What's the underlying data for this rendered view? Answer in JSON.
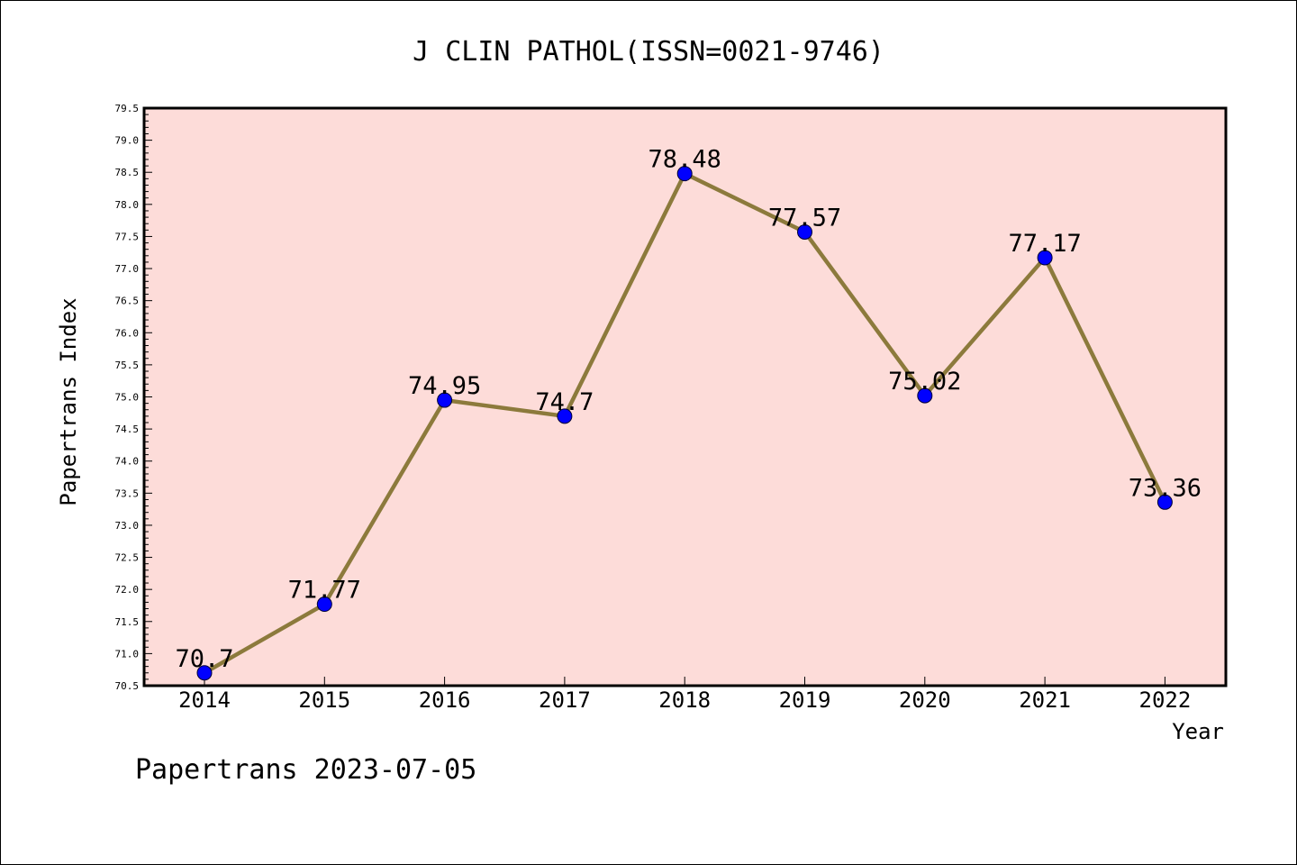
{
  "chart_data": {
    "type": "line",
    "title": "J CLIN PATHOL(ISSN=0021-9746)",
    "xlabel": "Year",
    "ylabel": "Papertrans Index",
    "categories": [
      "2014",
      "2015",
      "2016",
      "2017",
      "2018",
      "2019",
      "2020",
      "2021",
      "2022"
    ],
    "series": [
      {
        "values": [
          70.7,
          71.77,
          74.95,
          74.7,
          78.48,
          77.57,
          75.02,
          77.17,
          73.36
        ],
        "labels": [
          "70.7",
          "71.77",
          "74.95",
          "74.7",
          "78.48",
          "77.57",
          "75.02",
          "77.17",
          "73.36"
        ]
      }
    ],
    "ylim": [
      70.5,
      79.5
    ],
    "yticks": [
      "70.5",
      "71.0",
      "71.5",
      "72.0",
      "72.5",
      "73.0",
      "73.5",
      "74.0",
      "74.5",
      "75.0",
      "75.5",
      "76.0",
      "76.5",
      "77.0",
      "77.5",
      "78.0",
      "78.5",
      "79.0",
      "79.5"
    ],
    "grid": false,
    "colors": {
      "plot_background": "#fddcd9",
      "line": "#8c7a3c",
      "marker": "#0000ff"
    }
  },
  "footer": "Papertrans 2023-07-05"
}
